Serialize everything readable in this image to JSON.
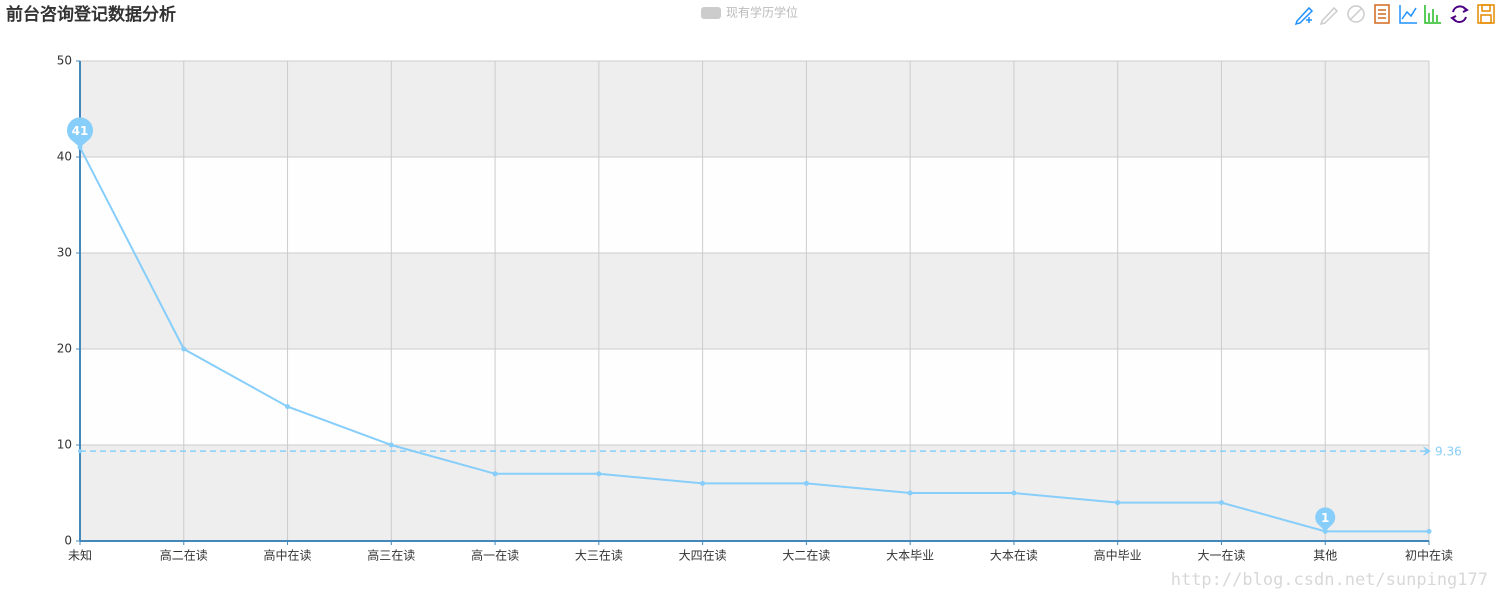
{
  "chart_data": {
    "type": "line",
    "title": "前台咨询登记数据分析",
    "categories": [
      "未知",
      "高二在读",
      "高中在读",
      "高三在读",
      "高一在读",
      "大三在读",
      "大四在读",
      "大二在读",
      "大本毕业",
      "大本在读",
      "高中毕业",
      "大一在读",
      "其他",
      "初中在读"
    ],
    "series": [
      {
        "name": "现有学历学位",
        "color": "#87cefa",
        "values": [
          41,
          20,
          14,
          10,
          7,
          7,
          6,
          6,
          5,
          5,
          4,
          4,
          1,
          1
        ]
      }
    ],
    "average": 9.36,
    "ylim": [
      0,
      50
    ],
    "yticks": [
      0,
      10,
      20,
      30,
      40,
      50
    ],
    "grid": true,
    "watermark": "http://blog.csdn.net/sunping177"
  }
}
